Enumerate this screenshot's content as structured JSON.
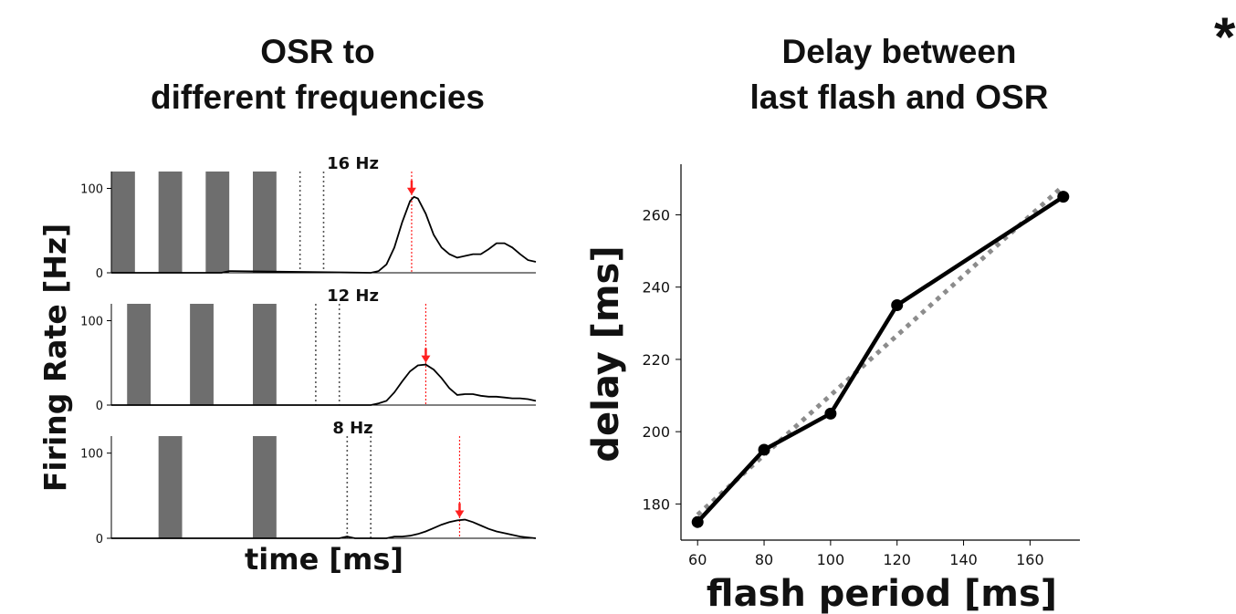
{
  "titles": {
    "left": "OSR to\ndifferent frequencies",
    "right": "Delay between\nlast flash and OSR",
    "corner_mark": "*"
  },
  "colors": {
    "stimulus_bar": "#6e6e6e",
    "response_line": "#000000",
    "peak_marker": "#ff2020",
    "flash_marker": "#555555",
    "fit_line": "#8c8c8c"
  },
  "chart_data": [
    {
      "type": "line",
      "title": "OSR to different frequencies",
      "xlabel": "time [ms]",
      "ylabel": "Firing Rate [Hz]",
      "panels": [
        {
          "title": "16 Hz",
          "yticks": [
            0,
            100
          ],
          "ylim": [
            0,
            120
          ],
          "xlim": [
            0,
            540
          ],
          "stimulus_bars": [
            [
              0,
              30
            ],
            [
              60,
              90
            ],
            [
              120,
              150
            ],
            [
              180,
              210
            ]
          ],
          "flash_markers": [
            240,
            270
          ],
          "peak_marker": 382,
          "series": [
            {
              "x": [
                0,
                140,
                150,
                330,
                340,
                350,
                360,
                370,
                380,
                385,
                390,
                400,
                410,
                420,
                430,
                440,
                450,
                460,
                470,
                480,
                490,
                500,
                510,
                520,
                530,
                540
              ],
              "y": [
                0,
                0,
                2,
                0,
                2,
                10,
                30,
                60,
                85,
                90,
                88,
                70,
                45,
                30,
                22,
                18,
                20,
                22,
                22,
                28,
                35,
                35,
                30,
                22,
                15,
                13
              ]
            }
          ]
        },
        {
          "title": "12 Hz",
          "yticks": [
            0,
            100
          ],
          "ylim": [
            0,
            120
          ],
          "xlim": [
            0,
            540
          ],
          "stimulus_bars": [
            [
              20,
              50
            ],
            [
              100,
              130
            ],
            [
              180,
              210
            ]
          ],
          "flash_markers": [
            260,
            290
          ],
          "peak_marker": 400,
          "series": [
            {
              "x": [
                0,
                330,
                340,
                350,
                360,
                370,
                380,
                390,
                400,
                410,
                420,
                430,
                440,
                450,
                460,
                470,
                480,
                490,
                500,
                510,
                520,
                530,
                540
              ],
              "y": [
                0,
                0,
                2,
                5,
                15,
                28,
                40,
                47,
                48,
                42,
                32,
                20,
                12,
                13,
                13,
                11,
                10,
                10,
                9,
                8,
                8,
                7,
                5
              ]
            }
          ]
        },
        {
          "title": "8 Hz",
          "yticks": [
            0,
            100
          ],
          "ylim": [
            0,
            120
          ],
          "xlim": [
            0,
            540
          ],
          "stimulus_bars": [
            [
              60,
              90
            ],
            [
              180,
              210
            ]
          ],
          "flash_markers": [
            300,
            330
          ],
          "peak_marker": 443,
          "series": [
            {
              "x": [
                0,
                290,
                300,
                310,
                320,
                330,
                340,
                350,
                360,
                370,
                380,
                390,
                400,
                410,
                420,
                430,
                440,
                450,
                460,
                470,
                480,
                490,
                500,
                510,
                520,
                530,
                540
              ],
              "y": [
                0,
                0,
                2,
                0,
                0,
                0,
                0,
                0,
                2,
                2,
                3,
                5,
                8,
                12,
                16,
                19,
                21,
                22,
                19,
                15,
                11,
                8,
                6,
                4,
                2,
                1,
                0
              ]
            }
          ]
        }
      ]
    },
    {
      "type": "line",
      "title": "Delay between last flash and OSR",
      "xlabel": "flash period [ms]",
      "ylabel": "delay [ms]",
      "xlim": [
        55,
        175
      ],
      "ylim": [
        170,
        274
      ],
      "xticks": [
        60,
        80,
        100,
        120,
        140,
        160
      ],
      "yticks": [
        180,
        200,
        220,
        240,
        260
      ],
      "series": [
        {
          "x": [
            60,
            80,
            100,
            120,
            170
          ],
          "y": [
            175,
            195,
            205,
            235,
            265
          ]
        },
        {
          "style": "dotted fit",
          "x": [
            60,
            170
          ],
          "y": [
            177,
            268
          ]
        }
      ]
    }
  ]
}
